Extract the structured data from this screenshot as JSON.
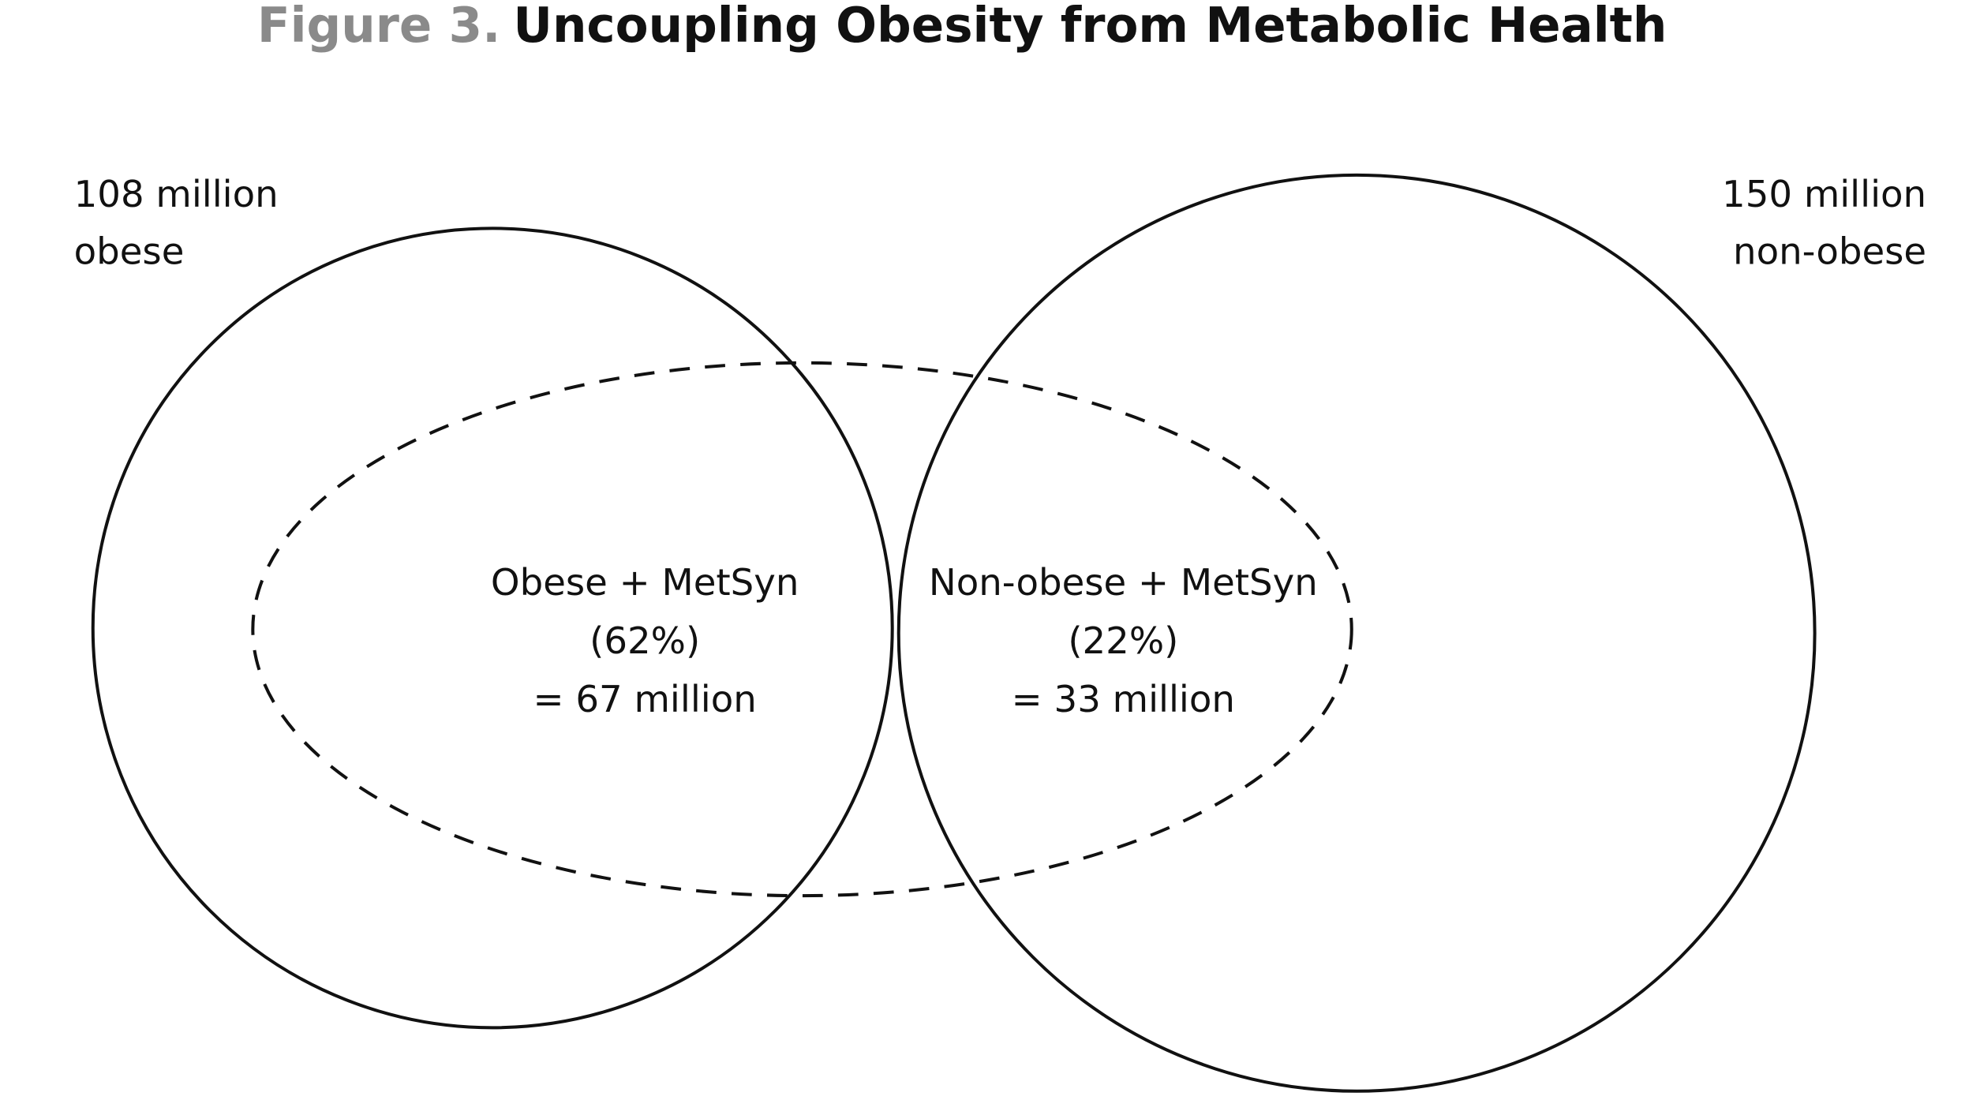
{
  "title": {
    "prefix": "Figure 3.",
    "text": "Uncoupling Obesity from Metabolic Health",
    "prefix_color": "#8a8a8a",
    "text_color": "#111111"
  },
  "sets": {
    "obese": {
      "line1": "108 million",
      "line2": "obese"
    },
    "non_obese": {
      "line1": "150 million",
      "line2": "non-obese"
    },
    "metsyn": {
      "style": "dashed"
    }
  },
  "regions": {
    "obese_metsyn": {
      "line1": "Obese + MetSyn",
      "line2": "(62%)",
      "line3": "= 67 million"
    },
    "nonobese_metsyn": {
      "line1": "Non-obese + MetSyn",
      "line2": "(22%)",
      "line3": "= 33 million"
    }
  }
}
